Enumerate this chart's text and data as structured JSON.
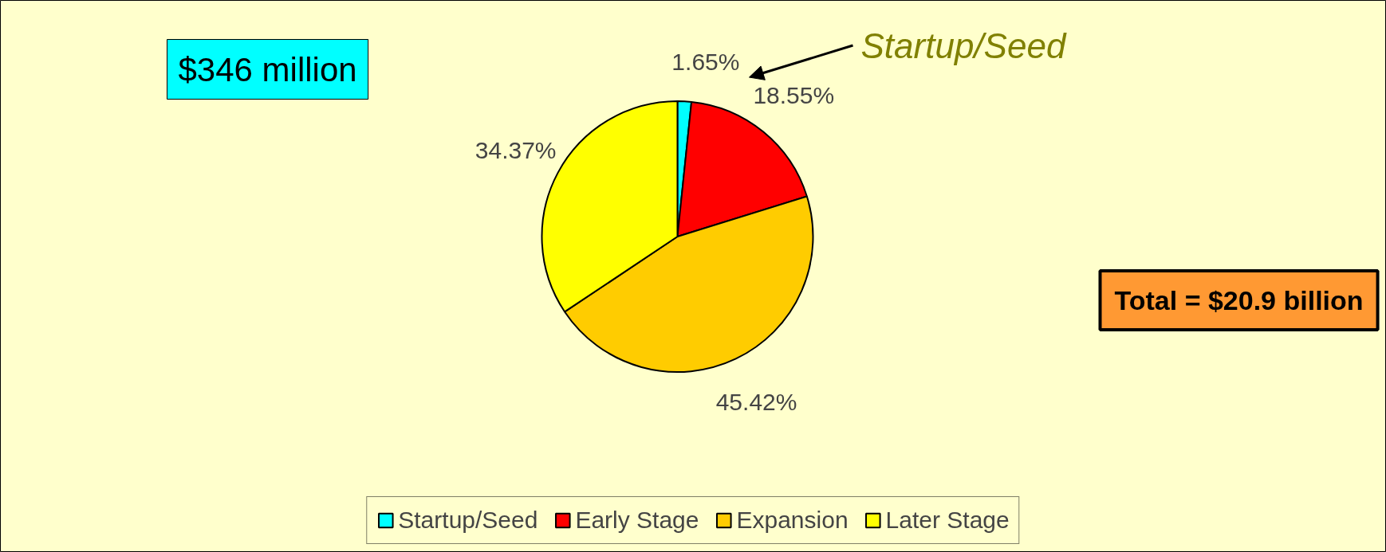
{
  "chart_data": {
    "type": "pie",
    "categories": [
      "Startup/Seed",
      "Early Stage",
      "Expansion",
      "Later Stage"
    ],
    "values": [
      1.65,
      18.55,
      45.42,
      34.37
    ],
    "colors": [
      "#00ffff",
      "#ff0000",
      "#ffcc00",
      "#ffff00"
    ],
    "value_labels": [
      "1.65%",
      "18.55%",
      "45.42%",
      "34.37%"
    ],
    "annotations": [
      "$346 million",
      "Startup/Seed",
      "Total = $20.9 billion"
    ],
    "legend": "bottom"
  }
}
